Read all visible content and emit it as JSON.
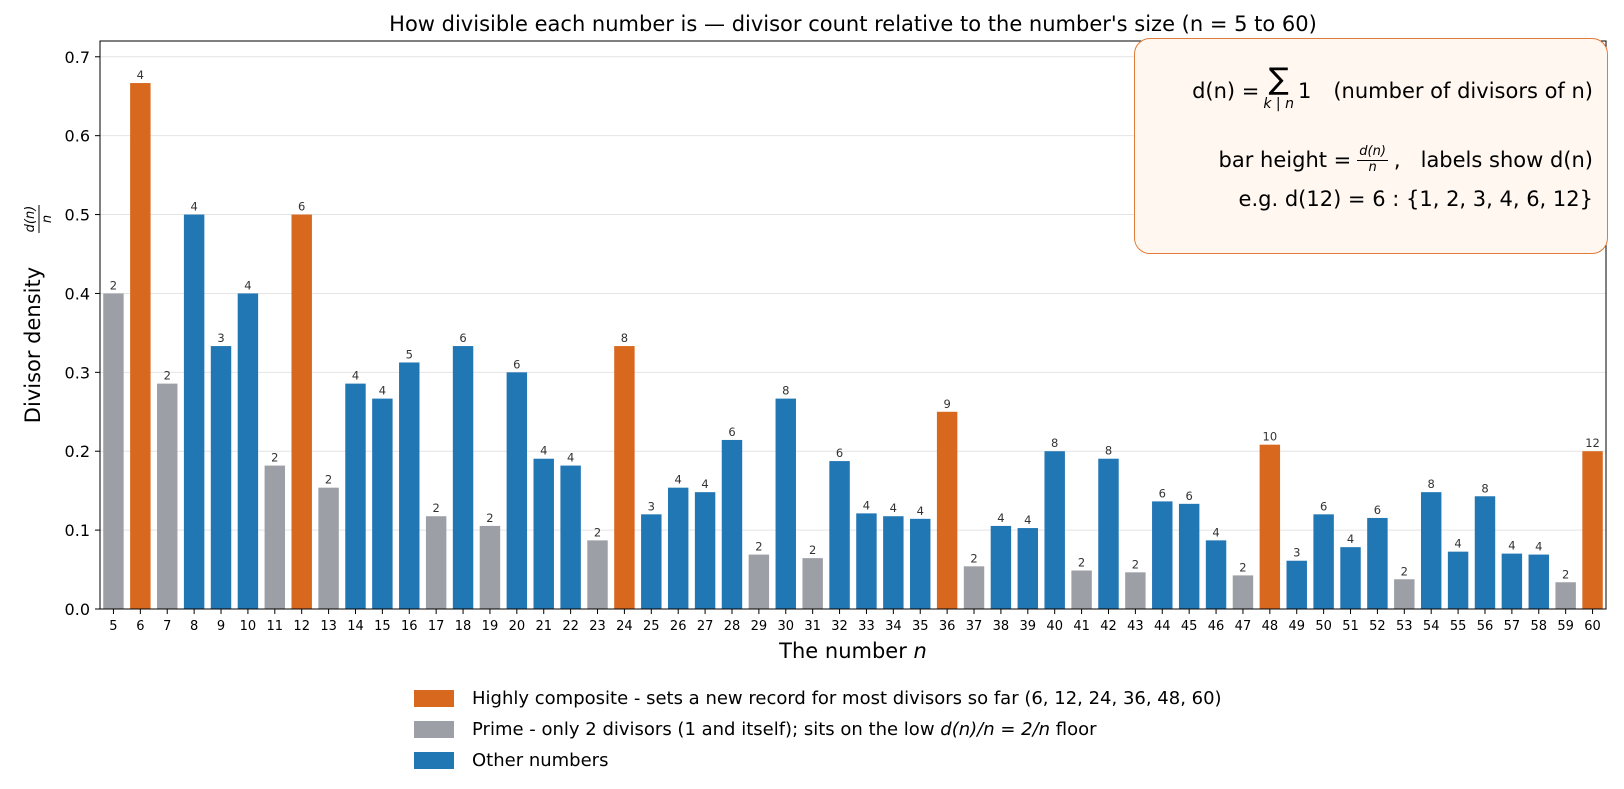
{
  "chart_data": {
    "type": "bar",
    "title": "How divisible each number is — divisor count relative to the number's size  (n = 5 to 60)",
    "xlabel": "The number  n",
    "ylabel": "Divisor density",
    "ylabel_fraction": {
      "numerator": "d(n)",
      "denominator": "n"
    },
    "ylim": [
      0,
      0.72
    ],
    "yticks": [
      "0.0",
      "0.1",
      "0.2",
      "0.3",
      "0.4",
      "0.5",
      "0.6",
      "0.7"
    ],
    "grid": "horizontal",
    "categories": [
      5,
      6,
      7,
      8,
      9,
      10,
      11,
      12,
      13,
      14,
      15,
      16,
      17,
      18,
      19,
      20,
      21,
      22,
      23,
      24,
      25,
      26,
      27,
      28,
      29,
      30,
      31,
      32,
      33,
      34,
      35,
      36,
      37,
      38,
      39,
      40,
      41,
      42,
      43,
      44,
      45,
      46,
      47,
      48,
      49,
      50,
      51,
      52,
      53,
      54,
      55,
      56,
      57,
      58,
      59,
      60
    ],
    "divisor_counts": [
      2,
      4,
      2,
      4,
      3,
      4,
      2,
      6,
      2,
      4,
      4,
      5,
      2,
      6,
      2,
      6,
      4,
      4,
      2,
      8,
      3,
      4,
      4,
      6,
      2,
      8,
      2,
      6,
      4,
      4,
      4,
      9,
      2,
      4,
      4,
      8,
      2,
      8,
      2,
      6,
      6,
      4,
      2,
      10,
      3,
      6,
      4,
      6,
      2,
      8,
      4,
      8,
      4,
      4,
      2,
      12
    ],
    "values": [
      0.4,
      0.6667,
      0.2857,
      0.5,
      0.3333,
      0.4,
      0.1818,
      0.5,
      0.1538,
      0.2857,
      0.2667,
      0.3125,
      0.1176,
      0.3333,
      0.1053,
      0.3,
      0.1905,
      0.1818,
      0.087,
      0.3333,
      0.12,
      0.1538,
      0.1481,
      0.2143,
      0.069,
      0.2667,
      0.0645,
      0.1875,
      0.1212,
      0.1176,
      0.1143,
      0.25,
      0.0541,
      0.1053,
      0.1026,
      0.2,
      0.0488,
      0.1905,
      0.0465,
      0.1364,
      0.1333,
      0.087,
      0.0426,
      0.2083,
      0.0612,
      0.12,
      0.0784,
      0.1154,
      0.0377,
      0.1481,
      0.0727,
      0.1429,
      0.0702,
      0.069,
      0.0339,
      0.2
    ],
    "highly_composite": [
      6,
      12,
      24,
      36,
      48,
      60
    ],
    "primes": [
      5,
      7,
      11,
      13,
      17,
      19,
      23,
      29,
      31,
      37,
      41,
      43,
      47,
      53,
      59
    ],
    "colors": {
      "highly_composite": "#d9681f",
      "prime": "#9ca0a6",
      "other": "#2176b4",
      "grid": "#e4e4e4",
      "box_border": "#e07b39",
      "box_fill": "#fff7f0"
    },
    "legend": {
      "placement": "bottom-center",
      "entries": [
        {
          "key": "highly_composite",
          "label": "Highly composite - sets a new record for most divisors so far (6, 12, 24, 36, 48, 60)"
        },
        {
          "key": "prime",
          "label_prefix": "Prime - only 2 divisors (1 and itself); sits on the low ",
          "label_math": "d(n)/n = 2/n",
          "label_suffix": " floor"
        },
        {
          "key": "other",
          "label": "Other numbers"
        }
      ]
    },
    "annotation_box": {
      "placement": "top-right",
      "line1_lhs": "d(n) =",
      "line1_sum_term": "1",
      "line1_sum_sub": "k | n",
      "line1_note": "(number of divisors of n)",
      "line2_prefix": "bar height  =",
      "line2_frac_num": "d(n)",
      "line2_frac_den": "n",
      "line2_suffix": ",   labels show d(n)",
      "line3": "e.g. d(12) = 6 :  {1, 2, 3, 4, 6, 12}"
    }
  }
}
